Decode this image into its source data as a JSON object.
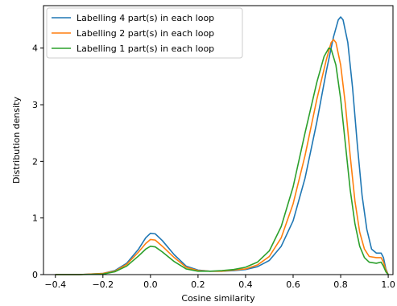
{
  "chart_data": {
    "type": "line",
    "xlabel": "Cosine similarity",
    "ylabel": "Distribution density",
    "xlim": [
      -0.45,
      1.02
    ],
    "ylim": [
      0,
      4.75
    ],
    "xticks": [
      -0.4,
      -0.2,
      0.0,
      0.2,
      0.4,
      0.6,
      0.8,
      1.0
    ],
    "xtick_labels": [
      "−0.4",
      "−0.2",
      "0.0",
      "0.2",
      "0.4",
      "0.6",
      "0.8",
      "1.0"
    ],
    "yticks": [
      0,
      1,
      2,
      3,
      4
    ],
    "ytick_labels": [
      "0",
      "1",
      "2",
      "3",
      "4"
    ],
    "grid": false,
    "legend_position": "top-left",
    "series": [
      {
        "name": "Labelling 4 part(s) in each loop",
        "color": "#1f77b4",
        "points": [
          [
            -0.4,
            0.0
          ],
          [
            -0.3,
            0.0
          ],
          [
            -0.2,
            0.02
          ],
          [
            -0.15,
            0.07
          ],
          [
            -0.1,
            0.2
          ],
          [
            -0.05,
            0.45
          ],
          [
            -0.02,
            0.65
          ],
          [
            0.0,
            0.73
          ],
          [
            0.02,
            0.72
          ],
          [
            0.05,
            0.6
          ],
          [
            0.1,
            0.35
          ],
          [
            0.15,
            0.15
          ],
          [
            0.2,
            0.08
          ],
          [
            0.25,
            0.06
          ],
          [
            0.3,
            0.06
          ],
          [
            0.35,
            0.07
          ],
          [
            0.4,
            0.09
          ],
          [
            0.45,
            0.14
          ],
          [
            0.5,
            0.25
          ],
          [
            0.55,
            0.5
          ],
          [
            0.6,
            0.95
          ],
          [
            0.65,
            1.7
          ],
          [
            0.7,
            2.7
          ],
          [
            0.74,
            3.6
          ],
          [
            0.77,
            4.2
          ],
          [
            0.79,
            4.5
          ],
          [
            0.8,
            4.55
          ],
          [
            0.81,
            4.5
          ],
          [
            0.83,
            4.1
          ],
          [
            0.85,
            3.3
          ],
          [
            0.87,
            2.3
          ],
          [
            0.89,
            1.4
          ],
          [
            0.91,
            0.8
          ],
          [
            0.93,
            0.45
          ],
          [
            0.95,
            0.38
          ],
          [
            0.97,
            0.38
          ],
          [
            0.98,
            0.3
          ],
          [
            0.99,
            0.1
          ],
          [
            1.0,
            0.0
          ]
        ]
      },
      {
        "name": "Labelling 2 part(s) in each loop",
        "color": "#ff7f0e",
        "points": [
          [
            -0.4,
            0.0
          ],
          [
            -0.3,
            0.0
          ],
          [
            -0.2,
            0.02
          ],
          [
            -0.15,
            0.06
          ],
          [
            -0.1,
            0.18
          ],
          [
            -0.05,
            0.4
          ],
          [
            -0.02,
            0.55
          ],
          [
            0.0,
            0.62
          ],
          [
            0.02,
            0.61
          ],
          [
            0.05,
            0.5
          ],
          [
            0.1,
            0.3
          ],
          [
            0.15,
            0.13
          ],
          [
            0.2,
            0.07
          ],
          [
            0.25,
            0.06
          ],
          [
            0.3,
            0.06
          ],
          [
            0.35,
            0.08
          ],
          [
            0.4,
            0.1
          ],
          [
            0.45,
            0.17
          ],
          [
            0.5,
            0.32
          ],
          [
            0.55,
            0.65
          ],
          [
            0.6,
            1.25
          ],
          [
            0.65,
            2.1
          ],
          [
            0.7,
            3.1
          ],
          [
            0.74,
            3.8
          ],
          [
            0.76,
            4.1
          ],
          [
            0.77,
            4.15
          ],
          [
            0.78,
            4.1
          ],
          [
            0.8,
            3.7
          ],
          [
            0.82,
            3.0
          ],
          [
            0.84,
            2.1
          ],
          [
            0.86,
            1.3
          ],
          [
            0.88,
            0.75
          ],
          [
            0.9,
            0.45
          ],
          [
            0.92,
            0.32
          ],
          [
            0.95,
            0.3
          ],
          [
            0.97,
            0.3
          ],
          [
            0.98,
            0.22
          ],
          [
            0.99,
            0.08
          ],
          [
            1.0,
            0.0
          ]
        ]
      },
      {
        "name": "Labelling 1 part(s) in each loop",
        "color": "#2ca02c",
        "points": [
          [
            -0.4,
            0.0
          ],
          [
            -0.3,
            0.0
          ],
          [
            -0.2,
            0.01
          ],
          [
            -0.15,
            0.05
          ],
          [
            -0.1,
            0.15
          ],
          [
            -0.05,
            0.33
          ],
          [
            -0.02,
            0.45
          ],
          [
            0.0,
            0.5
          ],
          [
            0.02,
            0.49
          ],
          [
            0.05,
            0.4
          ],
          [
            0.1,
            0.23
          ],
          [
            0.15,
            0.1
          ],
          [
            0.2,
            0.06
          ],
          [
            0.25,
            0.06
          ],
          [
            0.3,
            0.07
          ],
          [
            0.35,
            0.09
          ],
          [
            0.4,
            0.13
          ],
          [
            0.45,
            0.22
          ],
          [
            0.5,
            0.42
          ],
          [
            0.55,
            0.85
          ],
          [
            0.6,
            1.55
          ],
          [
            0.65,
            2.5
          ],
          [
            0.7,
            3.4
          ],
          [
            0.73,
            3.85
          ],
          [
            0.75,
            4.0
          ],
          [
            0.76,
            3.98
          ],
          [
            0.78,
            3.7
          ],
          [
            0.8,
            3.1
          ],
          [
            0.82,
            2.3
          ],
          [
            0.84,
            1.5
          ],
          [
            0.86,
            0.9
          ],
          [
            0.88,
            0.5
          ],
          [
            0.9,
            0.3
          ],
          [
            0.92,
            0.22
          ],
          [
            0.95,
            0.2
          ],
          [
            0.97,
            0.22
          ],
          [
            0.98,
            0.15
          ],
          [
            0.99,
            0.05
          ],
          [
            1.0,
            0.0
          ]
        ]
      }
    ]
  }
}
